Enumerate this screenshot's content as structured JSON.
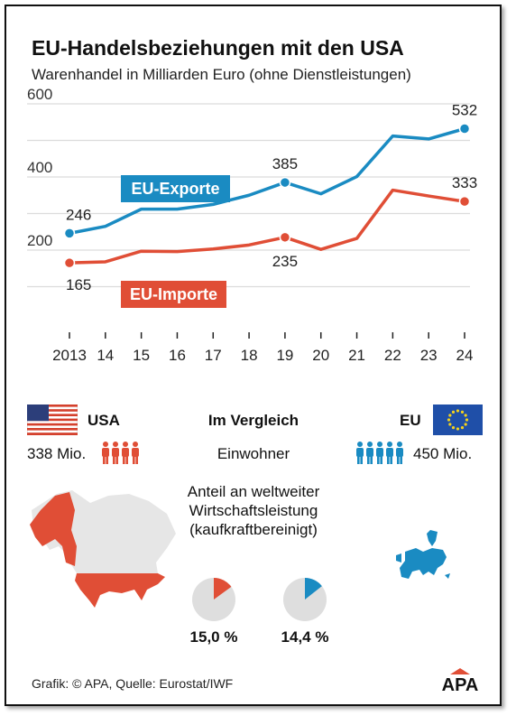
{
  "header": {
    "title": "EU-Handelsbeziehungen mit den USA",
    "subtitle": "Warenhandel in Milliarden Euro (ohne Dienstleistungen)"
  },
  "chart_data": {
    "type": "line",
    "x": [
      "2013",
      "14",
      "15",
      "16",
      "17",
      "18",
      "19",
      "20",
      "21",
      "22",
      "23",
      "24"
    ],
    "ylim": [
      0,
      600
    ],
    "yticks": [
      "200",
      "400",
      "600"
    ],
    "grid": true,
    "series": [
      {
        "name": "EU-Exporte",
        "color": "#1a8bc2",
        "values": [
          246,
          265,
          312,
          312,
          325,
          350,
          385,
          354,
          401,
          512,
          504,
          532
        ],
        "labels": [
          {
            "index": 0,
            "text": "246"
          },
          {
            "index": 6,
            "text": "385"
          },
          {
            "index": 11,
            "text": "532"
          }
        ]
      },
      {
        "name": "EU-Importe",
        "color": "#e04e36",
        "values": [
          165,
          168,
          197,
          196,
          203,
          214,
          235,
          202,
          232,
          364,
          348,
          333
        ],
        "labels": [
          {
            "index": 0,
            "text": "165"
          },
          {
            "index": 6,
            "text": "235"
          },
          {
            "index": 11,
            "text": "333"
          }
        ]
      }
    ]
  },
  "comparison": {
    "usa_label": "USA",
    "center_label": "Im Vergleich",
    "eu_label": "EU",
    "usa_population": "338 Mio.",
    "population_label": "Einwohner",
    "eu_population": "450 Mio.",
    "usa_person_icons": 4,
    "eu_person_icons": 5,
    "gdp_label_lines": [
      "Anteil an weltweiter",
      "Wirtschaftsleistung",
      "(kaufkraftbereinigt)"
    ],
    "usa_gdp_share": "15,0 %",
    "eu_gdp_share": "14,4 %",
    "usa_gdp_value": 15.0,
    "eu_gdp_value": 14.4
  },
  "colors": {
    "usa_red": "#e04e36",
    "eu_blue": "#1a8bc2",
    "grid": "#dcdcdc",
    "pie_bg": "#dedede"
  },
  "icons": [
    "us-flag-icon",
    "eu-flag-icon",
    "person-icon",
    "usa-map-icon",
    "europe-map-icon",
    "apa-logo-icon"
  ],
  "footer": {
    "source": "Grafik: © APA, Quelle: Eurostat/IWF",
    "logo_text": "APA"
  }
}
